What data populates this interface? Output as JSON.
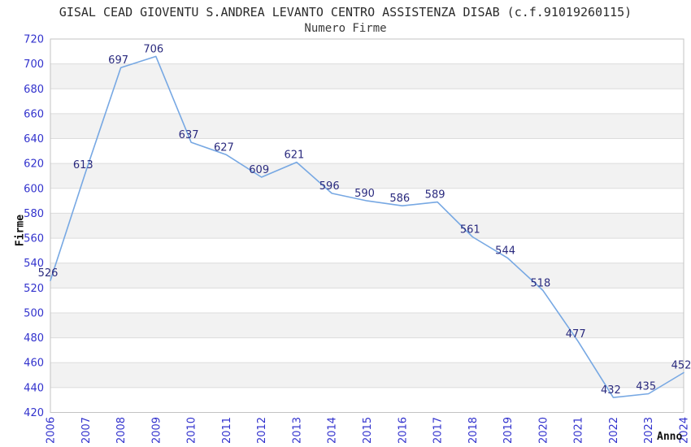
{
  "header": {
    "title": "GISAL CEAD GIOVENTU S.ANDREA LEVANTO CENTRO ASSISTENZA DISAB (c.f.91019260115)",
    "subtitle": "Numero Firme"
  },
  "chart_data": {
    "type": "line",
    "title": "GISAL CEAD GIOVENTU S.ANDREA LEVANTO CENTRO ASSISTENZA DISAB (c.f.91019260115)",
    "subtitle": "Numero Firme",
    "xlabel": "Anno",
    "ylabel": "Firme",
    "categories": [
      "2006",
      "2007",
      "2008",
      "2009",
      "2010",
      "2011",
      "2012",
      "2013",
      "2014",
      "2015",
      "2016",
      "2017",
      "2018",
      "2019",
      "2020",
      "2021",
      "2022",
      "2023",
      "2024"
    ],
    "values": [
      526,
      613,
      697,
      706,
      637,
      627,
      609,
      621,
      596,
      590,
      586,
      589,
      561,
      544,
      518,
      477,
      432,
      435,
      452
    ],
    "ylim": [
      420,
      720
    ],
    "ytick_step": 20,
    "grid": true,
    "legend_position": "none",
    "colors": {
      "line": "#77a8e3",
      "data_label": "#2a2a7e",
      "tick_label": "#3232cd",
      "band": "#f2f2f2",
      "grid": "#dcdcdc",
      "border": "#c3c3c3"
    }
  }
}
